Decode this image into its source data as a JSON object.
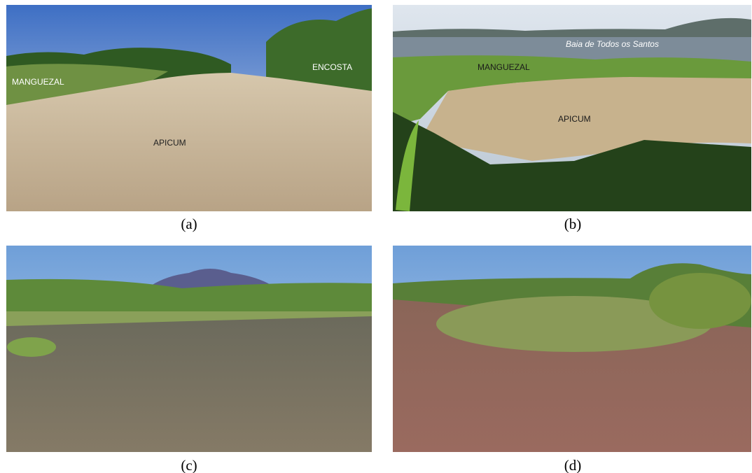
{
  "panels": [
    {
      "caption": "(a)",
      "labels": [
        "MANGUEZAL",
        "ENCOSTA",
        "APICUM"
      ]
    },
    {
      "caption": "(b)",
      "labels": [
        "Baia de Todos os Santos",
        "MANGUEZAL",
        "APICUM"
      ]
    },
    {
      "caption": "(c)"
    },
    {
      "caption": "(d)"
    }
  ]
}
